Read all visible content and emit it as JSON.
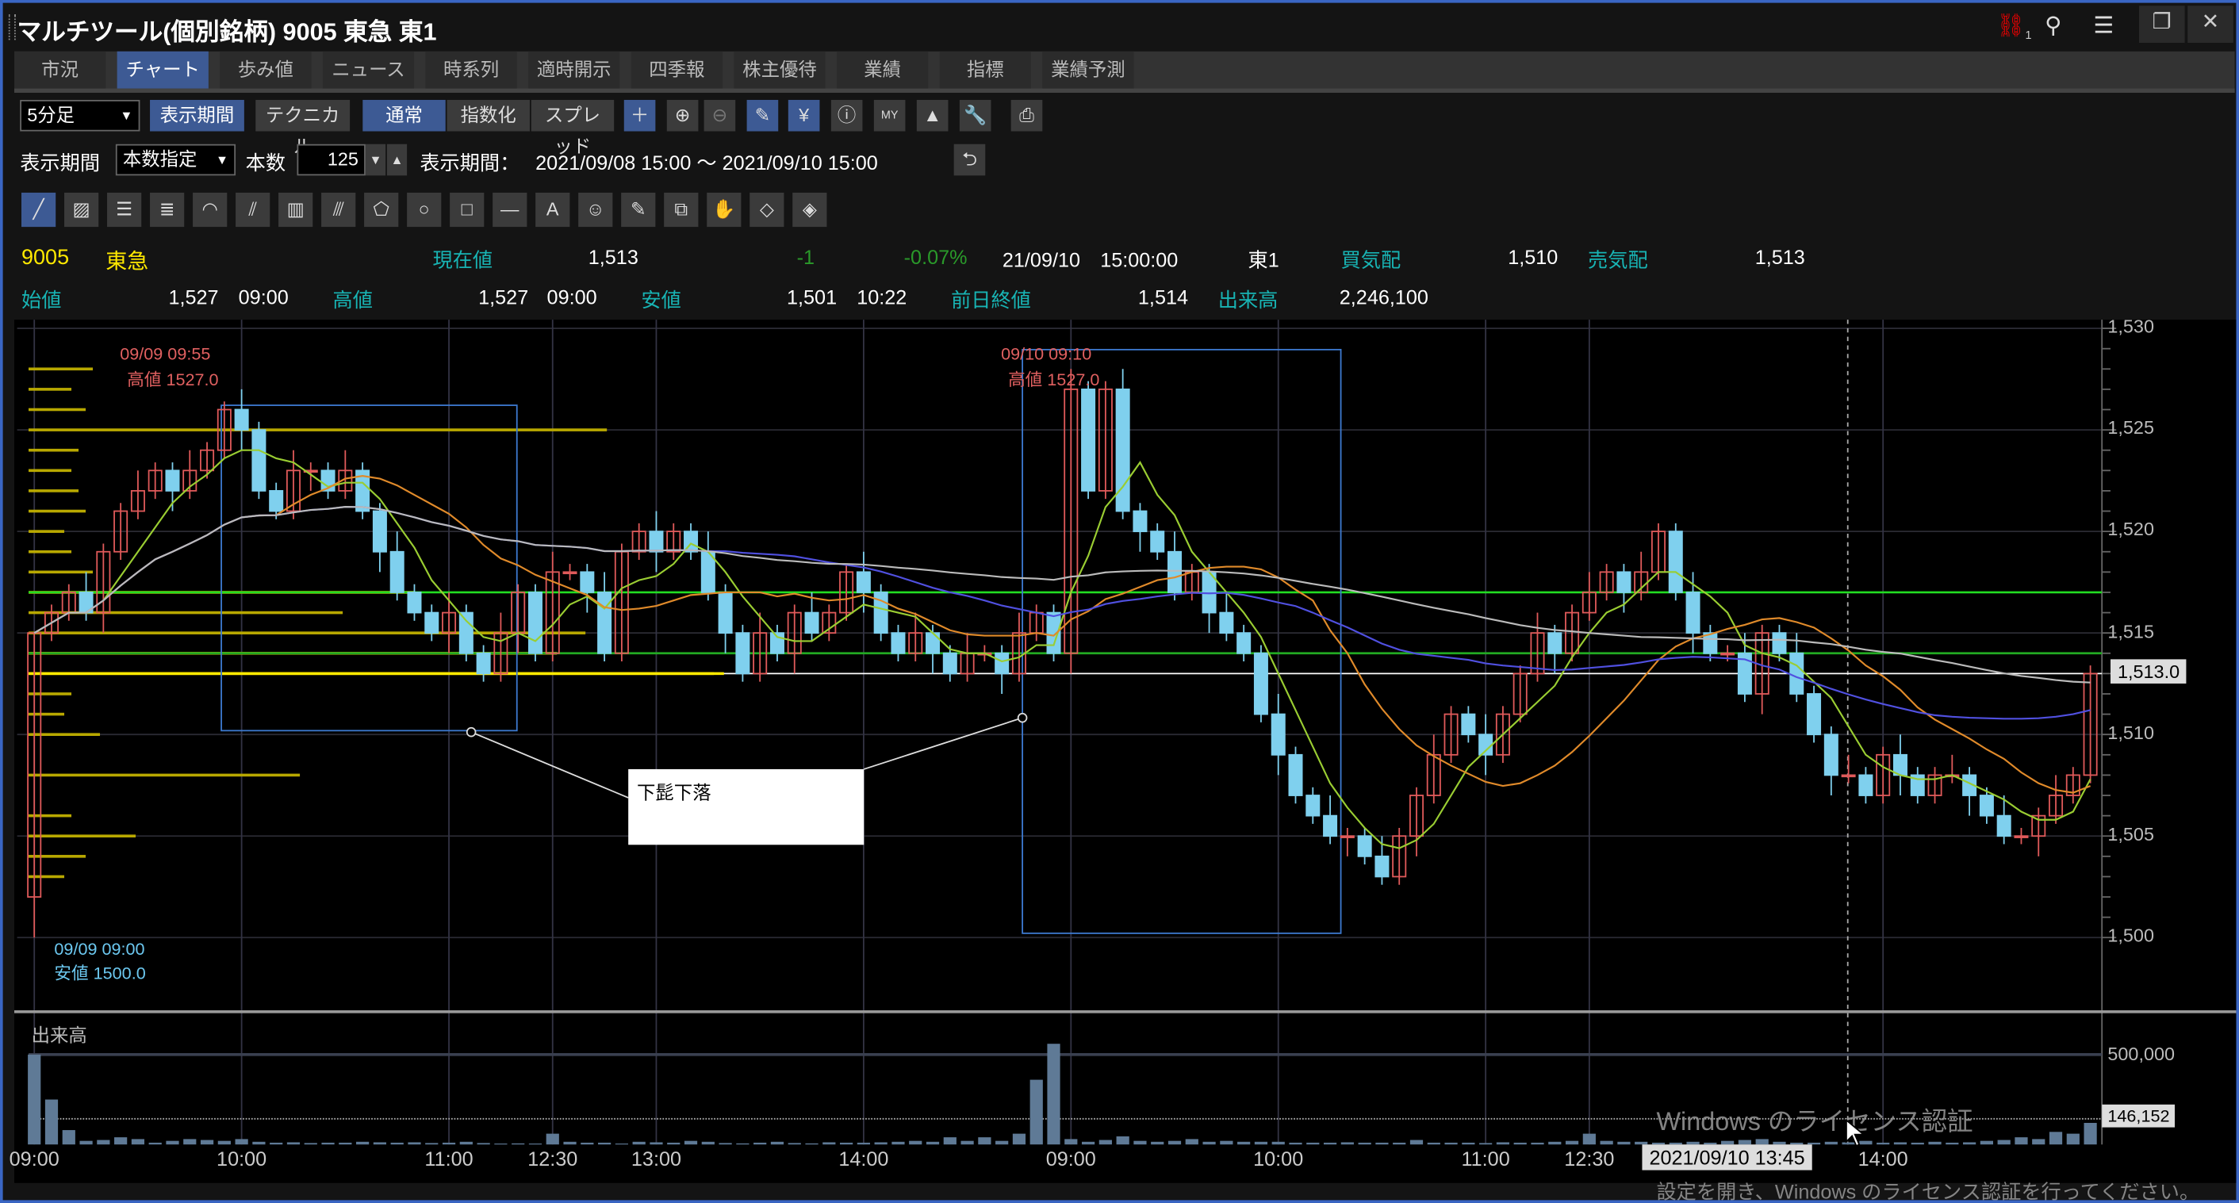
{
  "window": {
    "title": "マルチツール(個別銘柄) 9005 東急 東1",
    "link_badge": "1",
    "icons": [
      "link-icon",
      "search-icon",
      "menu-icon",
      "restore-icon",
      "close-icon"
    ]
  },
  "tabs": [
    {
      "label": "市況"
    },
    {
      "label": "チャート",
      "active": true
    },
    {
      "label": "歩み値"
    },
    {
      "label": "ニュース"
    },
    {
      "label": "時系列"
    },
    {
      "label": "適時開示"
    },
    {
      "label": "四季報"
    },
    {
      "label": "株主優待"
    },
    {
      "label": "業績"
    },
    {
      "label": "指標"
    },
    {
      "label": "業績予測"
    }
  ],
  "toolbar": {
    "interval": "5分足",
    "period_btn": "表示期間",
    "technical_btn": "テクニカル",
    "normal_btn": "通常",
    "index_btn": "指数化",
    "spread_btn": "スプレッド",
    "icons": [
      "crosshair-icon",
      "zoom-in-icon",
      "zoom-out-icon",
      "pencil-icon",
      "yen-icon",
      "info-icon",
      "my-chart-icon",
      "area-chart-icon",
      "wrench-icon",
      "print-icon"
    ]
  },
  "period": {
    "label": "表示期間",
    "mode": "本数指定",
    "count_label": "本数",
    "count": "125",
    "range_label": "表示期間：",
    "range": "2021/09/08 15:00 ～ 2021/09/10 15:00"
  },
  "drawing_tools": [
    "trendline",
    "ruler",
    "parallel-lines",
    "multi-lines",
    "fibonacci-arc",
    "fan",
    "vertical-lines",
    "pitchfork",
    "pentagon",
    "circle",
    "rectangle",
    "horizontal-line",
    "text",
    "icon",
    "stamp",
    "copy",
    "hand",
    "eraser",
    "eraser-all"
  ],
  "quote": {
    "code": "9005",
    "name": "東急",
    "current_label": "現在値",
    "current": "1,513",
    "change": "-1",
    "change_pct": "-0.07%",
    "datetime": "21/09/10　15:00:00",
    "market": "東1",
    "bid_label": "買気配",
    "bid": "1,510",
    "ask_label": "売気配",
    "ask": "1,513",
    "open_label": "始値",
    "open": "1,527",
    "open_time": "09:00",
    "high_label": "高値",
    "high": "1,527",
    "high_time": "09:00",
    "low_label": "安値",
    "low": "1,501",
    "low_time": "10:22",
    "prev_label": "前日終値",
    "prev": "1,514",
    "volume_label": "出来高",
    "volume": "2,246,100"
  },
  "annotations": {
    "a1_time": "09/09 09:55",
    "a1_text": "高値 1527.0",
    "a2_time": "09/10 09:10",
    "a2_text": "高値 1527.0",
    "a3_time": "09/09 09:00",
    "a3_text": "安値 1500.0",
    "callout": "下髭下落",
    "price_tag": "1,513.0",
    "vol_tag": "146,152",
    "crosshair_time": "2021/09/10 13:45"
  },
  "watermark": {
    "line1": "Windows のライセンス認証",
    "line2": "設定を開き、Windows のライセンス認証を行ってください。"
  },
  "chart_data": {
    "type": "candlestick",
    "ylim": [
      1500,
      1530
    ],
    "y_ticks": [
      "1,500",
      "1,505",
      "1,510",
      "1,515",
      "1,520",
      "1,525",
      "1,530"
    ],
    "x_ticks": [
      {
        "label": "09:00",
        "bar": 0
      },
      {
        "label": "10:00",
        "bar": 12
      },
      {
        "label": "11:00",
        "bar": 24
      },
      {
        "label": "12:30",
        "bar": 30
      },
      {
        "label": "13:00",
        "bar": 36
      },
      {
        "label": "14:00",
        "bar": 48
      },
      {
        "label": "09:00",
        "bar": 60
      },
      {
        "label": "10:00",
        "bar": 72
      },
      {
        "label": "11:00",
        "bar": 84
      },
      {
        "label": "12:30",
        "bar": 90
      },
      {
        "label": "14:00",
        "bar": 107
      }
    ],
    "first_open": 1502,
    "closes": [
      1515,
      1516,
      1517,
      1516,
      1519,
      1521,
      1522,
      1523,
      1522,
      1523,
      1524,
      1526,
      1525,
      1522,
      1521,
      1523,
      1523,
      1522,
      1523,
      1521,
      1519,
      1517,
      1516,
      1515,
      1516,
      1514,
      1513,
      1515,
      1517,
      1514,
      1518,
      1518,
      1517,
      1514,
      1519,
      1520,
      1519,
      1520,
      1519,
      1517,
      1515,
      1513,
      1515,
      1514,
      1516,
      1515,
      1516,
      1518,
      1517,
      1515,
      1514,
      1515,
      1514,
      1513,
      1514,
      1514,
      1513,
      1515,
      1516,
      1514,
      1527,
      1522,
      1527,
      1521,
      1520,
      1519,
      1517,
      1518,
      1516,
      1515,
      1514,
      1511,
      1509,
      1507,
      1506,
      1505,
      1505,
      1504,
      1503,
      1505,
      1507,
      1509,
      1511,
      1510,
      1509,
      1511,
      1513,
      1515,
      1514,
      1516,
      1517,
      1518,
      1517,
      1518,
      1520,
      1517,
      1515,
      1514,
      1514,
      1512,
      1515,
      1514,
      1512,
      1510,
      1508,
      1508,
      1507,
      1509,
      1508,
      1507,
      1508,
      1508,
      1507,
      1506,
      1505,
      1505,
      1506,
      1507,
      1508,
      1513
    ],
    "volume": {
      "label": "出来高",
      "ylim_tick": "500,000",
      "values": [
        500000,
        250000,
        80000,
        20000,
        25000,
        40000,
        30000,
        10000,
        20000,
        30000,
        25000,
        20000,
        30000,
        15000,
        10000,
        12000,
        8000,
        10000,
        10000,
        15000,
        12000,
        10000,
        12000,
        8000,
        10000,
        15000,
        8000,
        5000,
        6000,
        5000,
        60000,
        15000,
        10000,
        10000,
        5000,
        15000,
        12000,
        10000,
        20000,
        15000,
        8000,
        6000,
        10000,
        15000,
        8000,
        6000,
        12000,
        10000,
        10000,
        12000,
        15000,
        20000,
        15000,
        40000,
        20000,
        40000,
        20000,
        60000,
        360000,
        560000,
        30000,
        15000,
        25000,
        45000,
        20000,
        15000,
        20000,
        30000,
        15000,
        20000,
        15000,
        15000,
        15000,
        10000,
        10000,
        10000,
        12000,
        10000,
        10000,
        10000,
        25000,
        10000,
        10000,
        10000,
        8000,
        12000,
        10000,
        10000,
        15000,
        20000,
        60000,
        20000,
        15000,
        15000,
        10000,
        10000,
        15000,
        10000,
        20000,
        25000,
        30000,
        15000,
        10000,
        10000,
        15000,
        12000,
        20000,
        10000,
        12000,
        10000,
        15000,
        10000,
        12000,
        20000,
        25000,
        40000,
        30000,
        70000,
        60000,
        120000
      ],
      "current_tag": "146,152"
    },
    "horizontal_lines": [
      {
        "price": 1517,
        "color": "#22dd22"
      },
      {
        "price": 1514,
        "color": "#22aa22"
      },
      {
        "price": 1513,
        "color": "#ffffff"
      }
    ],
    "colors": {
      "up": "#e05a5a",
      "down": "#7fd0ee",
      "ma_short": "#9acd32",
      "ma_mid": "#e08a2a",
      "ma_long": "#5050e0",
      "ma_vlong": "#bbbbbb",
      "volume": "#5f7a96",
      "profile": "#b8a800"
    }
  }
}
